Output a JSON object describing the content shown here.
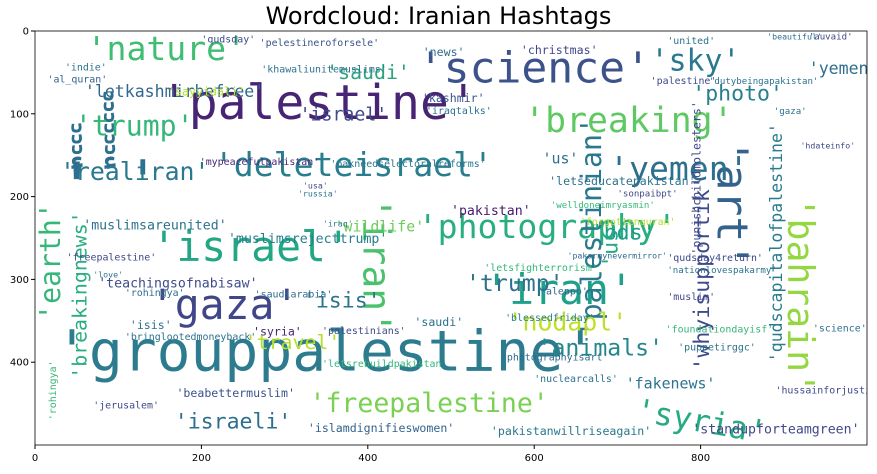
{
  "chart_data": {
    "type": "wordcloud",
    "title": "Wordcloud: Iranian Hashtags",
    "xlabel": "",
    "ylabel": "",
    "xlim": [
      0,
      1000
    ],
    "ylim": [
      500,
      0
    ],
    "xticks": [
      0,
      200,
      400,
      600,
      800
    ],
    "yticks": [
      0,
      100,
      200,
      300,
      400
    ],
    "grid": false,
    "words": [
      {
        "text": "'grouppalestine'",
        "x": 24,
        "y": 410,
        "size": 68,
        "color": "#2c7b8e"
      },
      {
        "text": "'palestine'",
        "x": 150,
        "y": 106,
        "size": 58,
        "color": "#482475"
      },
      {
        "text": "'ٔ٘٘٘ ٔ٘٘٘٘٘٘'",
        "x": 30,
        "y": 205,
        "size": 68,
        "color": "#2c6f8e"
      },
      {
        "text": "'science'",
        "x": 460,
        "y": 62,
        "size": 52,
        "color": "#3b528b"
      },
      {
        "text": "'nature'",
        "x": 62,
        "y": 35,
        "size": 40,
        "color": "#40bd72"
      },
      {
        "text": "'sky'",
        "x": 740,
        "y": 48,
        "size": 36,
        "color": "#2a788e"
      },
      {
        "text": "'breaking'",
        "x": 588,
        "y": 122,
        "size": 42,
        "color": "#5ec962"
      },
      {
        "text": "'gaza'",
        "x": 138,
        "y": 348,
        "size": 50,
        "color": "#404788"
      },
      {
        "text": "'israel'",
        "x": 140,
        "y": 278,
        "size": 50,
        "color": "#22a785"
      },
      {
        "text": "'iran'",
        "x": 540,
        "y": 330,
        "size": 50,
        "color": "#1fa088"
      },
      {
        "text": "'art'",
        "x": 820,
        "y": 130,
        "size": 52,
        "color": "#33638d",
        "rotate": 90
      },
      {
        "text": "'bahrain'",
        "x": 905,
        "y": 200,
        "size": 44,
        "color": "#93d741",
        "rotate": 90
      },
      {
        "text": "'deleteisrael'",
        "x": 215,
        "y": 175,
        "size": 40,
        "color": "#287d8e"
      },
      {
        "text": "'yemen'",
        "x": 690,
        "y": 180,
        "size": 40,
        "color": "#2d708e"
      },
      {
        "text": "'trump'",
        "x": 48,
        "y": 126,
        "size": 34,
        "color": "#35b779"
      },
      {
        "text": "'realiran'",
        "x": 30,
        "y": 180,
        "size": 30,
        "color": "#2a778e"
      },
      {
        "text": "'photography'",
        "x": 460,
        "y": 250,
        "size": 40,
        "color": "#29af7f"
      },
      {
        "text": "'photo'",
        "x": 790,
        "y": 84,
        "size": 26,
        "color": "#27808e"
      },
      {
        "text": "'yemen'",
        "x": 930,
        "y": 52,
        "size": 20,
        "color": "#2e6e8e"
      },
      {
        "text": "'saudi'",
        "x": 350,
        "y": 58,
        "size": 24,
        "color": "#2da37e"
      },
      {
        "text": "'letkashmirbefree'",
        "x": 60,
        "y": 80,
        "size": 20,
        "color": "#31688e"
      },
      {
        "text": "'israel'",
        "x": 318,
        "y": 108,
        "size": 22,
        "color": "#3e4a89"
      },
      {
        "text": "'iran'",
        "x": 395,
        "y": 200,
        "size": 46,
        "color": "#4ac16d",
        "rotate": 90
      },
      {
        "text": "'earth'",
        "x": 30,
        "y": 350,
        "size": 34,
        "color": "#35b779",
        "rotate": -90
      },
      {
        "text": "'breakingnews'",
        "x": 62,
        "y": 420,
        "size": 24,
        "color": "#27ad81",
        "rotate": -90
      },
      {
        "text": "'palestinian'",
        "x": 680,
        "y": 370,
        "size": 34,
        "color": "#2a788e",
        "rotate": -90
      },
      {
        "text": "'whyisupportik'",
        "x": 810,
        "y": 410,
        "size": 26,
        "color": "#3e4989",
        "rotate": -90
      },
      {
        "text": "'qudscapitalofpalestine'",
        "x": 898,
        "y": 400,
        "size": 20,
        "color": "#287c8e",
        "rotate": -90
      },
      {
        "text": "'trump'",
        "x": 518,
        "y": 314,
        "size": 28,
        "color": "#2c728e"
      },
      {
        "text": "'isis'",
        "x": 322,
        "y": 334,
        "size": 26,
        "color": "#2c738e"
      },
      {
        "text": "'nodapl'",
        "x": 568,
        "y": 362,
        "size": 30,
        "color": "#bddf26"
      },
      {
        "text": "'animals'",
        "x": 604,
        "y": 392,
        "size": 28,
        "color": "#24878e"
      },
      {
        "text": "'travel'",
        "x": 252,
        "y": 384,
        "size": 24,
        "color": "#b5de2b"
      },
      {
        "text": "'bds'",
        "x": 668,
        "y": 252,
        "size": 26,
        "color": "#1e9b8a"
      },
      {
        "text": "'us'",
        "x": 700,
        "y": 286,
        "size": 26,
        "color": "#22a884",
        "rotate": -90
      },
      {
        "text": "'freepalestine'",
        "x": 330,
        "y": 460,
        "size": 32,
        "color": "#7ad151"
      },
      {
        "text": "'syria'",
        "x": 720,
        "y": 470,
        "size": 38,
        "color": "#25ab82",
        "rotate": 10
      },
      {
        "text": "'israeli'",
        "x": 168,
        "y": 480,
        "size": 26,
        "color": "#2d708e"
      },
      {
        "text": "'fakenews'",
        "x": 710,
        "y": 432,
        "size": 18,
        "color": "#2c738e"
      },
      {
        "text": "'standupforteamgreen'",
        "x": 790,
        "y": 486,
        "size": 16,
        "color": "#3f4889"
      },
      {
        "text": "'wildlife'",
        "x": 360,
        "y": 242,
        "size": 18,
        "color": "#6ccd5a"
      },
      {
        "text": "'us'",
        "x": 610,
        "y": 160,
        "size": 18,
        "color": "#2c728e"
      },
      {
        "text": "'letseducatepakistan'",
        "x": 618,
        "y": 186,
        "size": 14,
        "color": "#2c738e"
      },
      {
        "text": "'pakistan'",
        "x": 500,
        "y": 222,
        "size": 16,
        "color": "#481b6d"
      },
      {
        "text": "'muslimsareunited'",
        "x": 58,
        "y": 240,
        "size": 16,
        "color": "#2c728e"
      },
      {
        "text": "'muslimsrejecttrump'",
        "x": 232,
        "y": 256,
        "size": 16,
        "color": "#277e8e"
      },
      {
        "text": "'teachingsofnabisaw'",
        "x": 76,
        "y": 310,
        "size": 16,
        "color": "#3e4c8a"
      },
      {
        "text": "'christmas'",
        "x": 584,
        "y": 28,
        "size": 14,
        "color": "#3f4889"
      },
      {
        "text": "'news'",
        "x": 466,
        "y": 30,
        "size": 14,
        "color": "#2f6c8e"
      },
      {
        "text": "'pelestineroforsele'",
        "x": 270,
        "y": 18,
        "size": 12,
        "color": "#3b528b"
      },
      {
        "text": "'pakneedselectoralreforms'",
        "x": 355,
        "y": 164,
        "size": 12,
        "color": "#2a788e"
      },
      {
        "text": "'mypeacefulpakistan'",
        "x": 198,
        "y": 162,
        "size": 12,
        "color": "#482878"
      },
      {
        "text": "'letsfighterrorism'",
        "x": 540,
        "y": 290,
        "size": 12,
        "color": "#35b779"
      },
      {
        "text": "'qudsday4return'",
        "x": 760,
        "y": 278,
        "size": 12,
        "color": "#3e4989"
      },
      {
        "text": "'photographyisart'",
        "x": 560,
        "y": 398,
        "size": 12,
        "color": "#2f6b8e"
      },
      {
        "text": "'letsrebuildpakistan'",
        "x": 345,
        "y": 406,
        "size": 12,
        "color": "#35b779"
      },
      {
        "text": "'bringlootedmoneyback'",
        "x": 108,
        "y": 373,
        "size": 12,
        "color": "#2c728e"
      },
      {
        "text": "'beabettermuslim'",
        "x": 170,
        "y": 442,
        "size": 14,
        "color": "#3b528b"
      },
      {
        "text": "'islamdignifieswomen'",
        "x": 328,
        "y": 484,
        "size": 14,
        "color": "#33638d"
      },
      {
        "text": "'pakistanwillriseagain'",
        "x": 548,
        "y": 488,
        "size": 14,
        "color": "#2a788e"
      },
      {
        "text": "'jerusalem'",
        "x": 70,
        "y": 456,
        "size": 12,
        "color": "#3e4a89"
      },
      {
        "text": "'nuclearcalls'",
        "x": 600,
        "y": 424,
        "size": 12,
        "color": "#2c728e"
      },
      {
        "text": "'puppetirggc'",
        "x": 773,
        "y": 386,
        "size": 12,
        "color": "#2d718e"
      },
      {
        "text": "'foundationdayisf'",
        "x": 758,
        "y": 364,
        "size": 12,
        "color": "#35b779"
      },
      {
        "text": "'blessedfriday'",
        "x": 565,
        "y": 350,
        "size": 12,
        "color": "#277f8e"
      },
      {
        "text": "'aleppo'",
        "x": 607,
        "y": 318,
        "size": 12,
        "color": "#31688e"
      },
      {
        "text": "'palestinians'",
        "x": 345,
        "y": 366,
        "size": 12,
        "color": "#3e4989"
      },
      {
        "text": "'saudi'",
        "x": 456,
        "y": 356,
        "size": 14,
        "color": "#2c728e"
      },
      {
        "text": "'saudiarabia'",
        "x": 264,
        "y": 322,
        "size": 12,
        "color": "#2e6e8e"
      },
      {
        "text": "'syria'",
        "x": 262,
        "y": 368,
        "size": 14,
        "color": "#482575"
      },
      {
        "text": "'isis'",
        "x": 114,
        "y": 360,
        "size": 14,
        "color": "#2c738e"
      },
      {
        "text": "'rohingya'",
        "x": 108,
        "y": 320,
        "size": 12,
        "color": "#2e6e8e"
      },
      {
        "text": "'rohingya'",
        "x": 25,
        "y": 470,
        "size": 12,
        "color": "#35b779",
        "rotate": -90
      },
      {
        "text": "'freepalestine'",
        "x": 38,
        "y": 277,
        "size": 12,
        "color": "#3f4889"
      },
      {
        "text": "'love'",
        "x": 70,
        "y": 298,
        "size": 10,
        "color": "#2c728e"
      },
      {
        "text": "'russia'",
        "x": 316,
        "y": 200,
        "size": 10,
        "color": "#2c728e"
      },
      {
        "text": "'usa'",
        "x": 322,
        "y": 190,
        "size": 10,
        "color": "#3e4989"
      },
      {
        "text": "'iraq'",
        "x": 346,
        "y": 236,
        "size": 10,
        "color": "#2a778e"
      },
      {
        "text": "'kashmir'",
        "x": 465,
        "y": 86,
        "size": 14,
        "color": "#3b528b"
      },
      {
        "text": "'iraqtalks'",
        "x": 470,
        "y": 100,
        "size": 12,
        "color": "#2c728e"
      },
      {
        "text": "'khawaliunitemuslims'",
        "x": 272,
        "y": 50,
        "size": 12,
        "color": "#2c728e"
      },
      {
        "text": "'sayyidali'",
        "x": 160,
        "y": 78,
        "size": 14,
        "color": "#b5de2b"
      },
      {
        "text": "'welldoneimryasmin'",
        "x": 620,
        "y": 214,
        "size": 11,
        "color": "#35b779"
      },
      {
        "text": "'forgottenquran'",
        "x": 655,
        "y": 234,
        "size": 12,
        "color": "#b5de2b"
      },
      {
        "text": "'sonpaibpt'",
        "x": 700,
        "y": 200,
        "size": 11,
        "color": "#3e4989"
      },
      {
        "text": "'punishchildmolesters'",
        "x": 800,
        "y": 270,
        "size": 14,
        "color": "#3e4989",
        "rotate": -90
      },
      {
        "text": "'nationlovespakarmy'",
        "x": 760,
        "y": 292,
        "size": 11,
        "color": "#2c728e"
      },
      {
        "text": "'pakarmynevermirror'",
        "x": 640,
        "y": 275,
        "size": 10,
        "color": "#31688e"
      },
      {
        "text": "'united'",
        "x": 760,
        "y": 16,
        "size": 12,
        "color": "#2c728e"
      },
      {
        "text": "'qudsday'",
        "x": 200,
        "y": 14,
        "size": 12,
        "color": "#3e4989"
      },
      {
        "text": "'indie'",
        "x": 36,
        "y": 48,
        "size": 12,
        "color": "#2c728e"
      },
      {
        "text": "'al_quran'",
        "x": 15,
        "y": 62,
        "size": 12,
        "color": "#33638d"
      },
      {
        "text": "'hussainforjustice'",
        "x": 890,
        "y": 438,
        "size": 12,
        "color": "#3e4989"
      },
      {
        "text": "'muslim'",
        "x": 760,
        "y": 325,
        "size": 12,
        "color": "#3f4889"
      },
      {
        "text": "'science'",
        "x": 935,
        "y": 363,
        "size": 12,
        "color": "#2c728e"
      },
      {
        "text": "'auvaid'",
        "x": 930,
        "y": 10,
        "size": 11,
        "color": "#3e4989"
      },
      {
        "text": "'beautiful'",
        "x": 880,
        "y": 10,
        "size": 10,
        "color": "#2c728e"
      },
      {
        "text": "'palestine'",
        "x": 740,
        "y": 64,
        "size": 12,
        "color": "#3e4989"
      },
      {
        "text": "'dutybeingapakistan'",
        "x": 810,
        "y": 64,
        "size": 11,
        "color": "#2c728e"
      },
      {
        "text": "'gaza'",
        "x": 888,
        "y": 100,
        "size": 11,
        "color": "#2c728e"
      },
      {
        "text": "'hdateinfo'",
        "x": 920,
        "y": 142,
        "size": 10,
        "color": "#3e4989"
      }
    ]
  }
}
